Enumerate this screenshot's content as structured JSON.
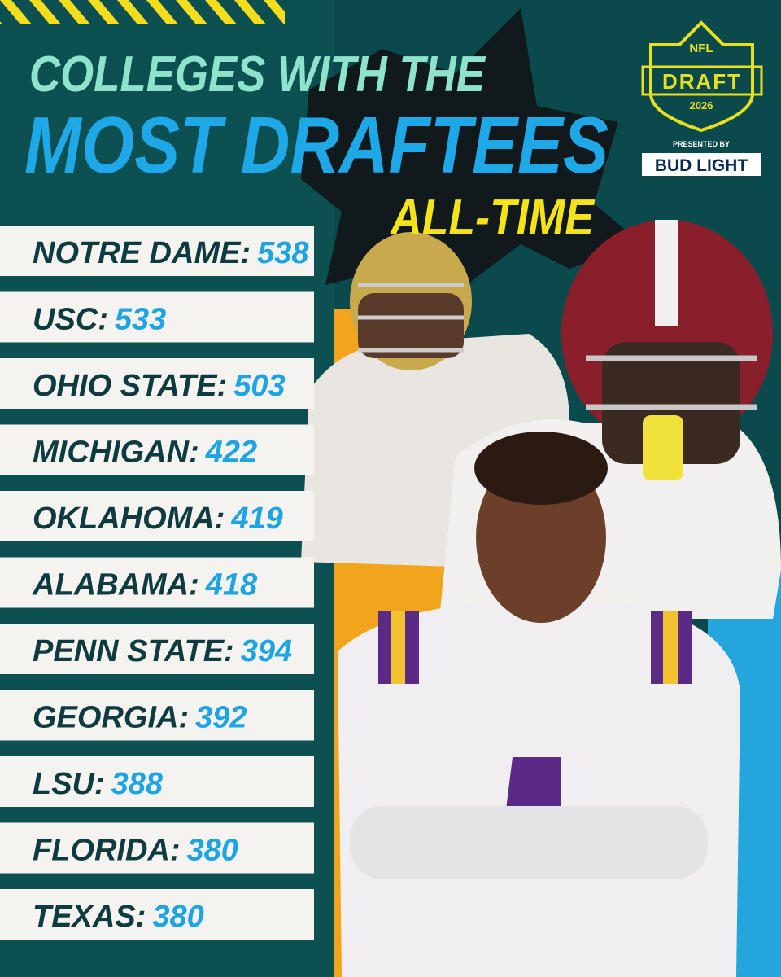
{
  "header": {
    "line1": "COLLEGES WITH THE",
    "line2": "MOST DRAFTEES",
    "line3": "ALL-TIME"
  },
  "logo": {
    "league": "NFL",
    "event": "DRAFT",
    "year": "2026",
    "presented_by": "PRESENTED BY",
    "sponsor": "BUD LIGHT"
  },
  "rows": [
    {
      "name": "NOTRE DAME:",
      "count": 538
    },
    {
      "name": "USC:",
      "count": 533
    },
    {
      "name": "OHIO STATE:",
      "count": 503
    },
    {
      "name": "MICHIGAN:",
      "count": 422
    },
    {
      "name": "OKLAHOMA:",
      "count": 419
    },
    {
      "name": "ALABAMA:",
      "count": 418
    },
    {
      "name": "PENN STATE:",
      "count": 394
    },
    {
      "name": "GEORGIA:",
      "count": 392
    },
    {
      "name": "LSU:",
      "count": 388
    },
    {
      "name": "FLORIDA:",
      "count": 380
    },
    {
      "name": "TEXAS:",
      "count": 380
    }
  ]
}
